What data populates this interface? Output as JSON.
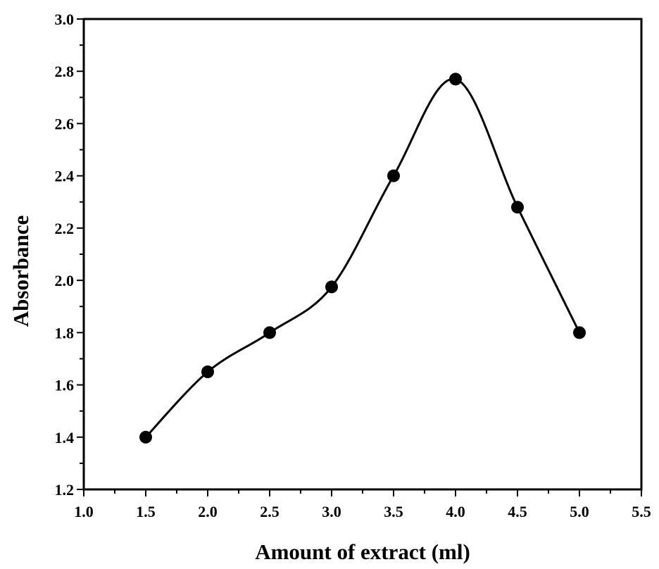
{
  "chart_data": {
    "type": "line",
    "title": "",
    "xlabel": "Amount of extract (ml)",
    "ylabel": "Absorbance",
    "xlim": [
      1.0,
      5.5
    ],
    "ylim": [
      1.2,
      3.0
    ],
    "xticks": [
      "1.0",
      "1.5",
      "2.0",
      "2.5",
      "3.0",
      "3.5",
      "4.0",
      "4.5",
      "5.0",
      "5.5"
    ],
    "yticks": [
      "1.2",
      "1.4",
      "1.6",
      "1.8",
      "2.0",
      "2.2",
      "2.4",
      "2.6",
      "2.8",
      "3.0"
    ],
    "grid": false,
    "legend": "none",
    "smooth": true,
    "line_color": "#000000",
    "marker": "filled-circle",
    "series": [
      {
        "x": [
          1.5,
          2.0,
          2.5,
          3.0,
          3.5,
          4.0,
          4.5,
          5.0
        ],
        "y": [
          1.4,
          1.65,
          1.8,
          1.975,
          2.4,
          2.77,
          2.28,
          1.8
        ]
      }
    ]
  }
}
